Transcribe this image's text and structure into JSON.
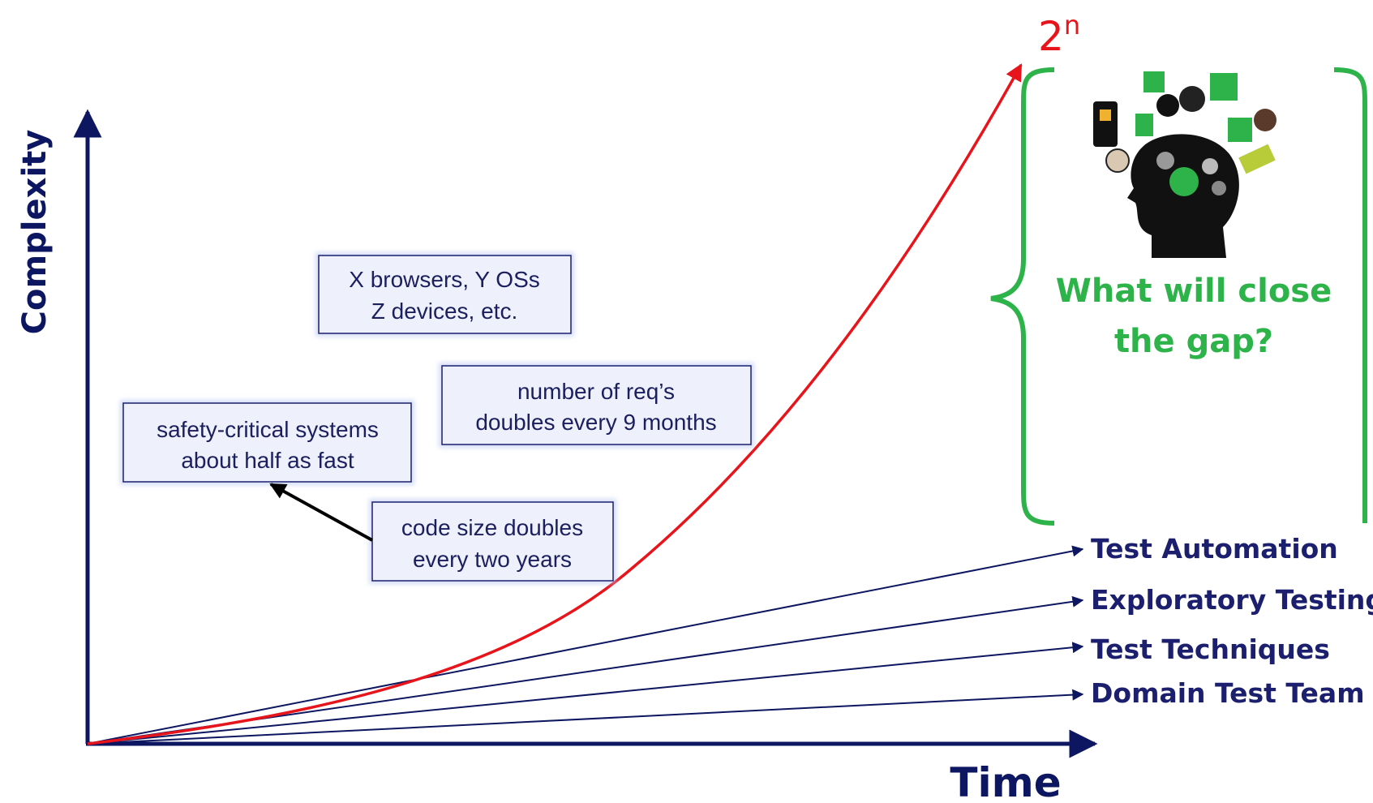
{
  "axes": {
    "y_label": "Complexity",
    "x_label": "Time"
  },
  "curve": {
    "label_base": "2",
    "label_exponent": "n"
  },
  "notes": [
    {
      "lines": [
        "X browsers, Y OSs",
        "Z devices, etc."
      ]
    },
    {
      "lines": [
        "number of req’s",
        "doubles every 9 months"
      ]
    },
    {
      "lines": [
        "safety-critical systems",
        "about half as fast"
      ]
    },
    {
      "lines": [
        "code size doubles",
        "every two years"
      ]
    }
  ],
  "approaches": [
    {
      "label": "Test Automation"
    },
    {
      "label": "Exploratory Testing"
    },
    {
      "label": "Test Techniques"
    },
    {
      "label": "Domain Test Team"
    }
  ],
  "gap": {
    "lines": [
      "What will close",
      "the gap?"
    ]
  }
}
